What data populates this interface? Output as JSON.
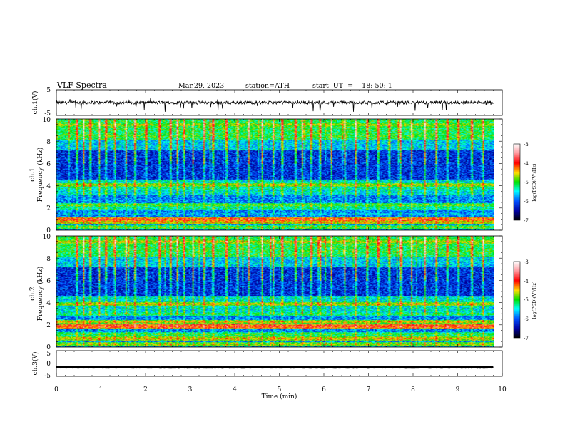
{
  "header": {
    "title": "VLF  Spectra",
    "date": "Mar.29, 2023",
    "station": "station=ATH",
    "start_ut": "start  UT  =    18: 50: 1"
  },
  "chart_data": [
    {
      "type": "line",
      "name": "ch1-waveform",
      "ylabel": "ch.1(V)",
      "ylim": [
        -5,
        5
      ],
      "yticks": [
        "5",
        "-5"
      ],
      "xlim": [
        0,
        9.8
      ],
      "baseline": 0,
      "noise_amplitude": 1.2,
      "spike_amplitude": 2.2
    },
    {
      "type": "heatmap",
      "name": "ch1-spectrogram",
      "ylabel_channel": "ch.1",
      "ylabel": "Frequency  (kHz)",
      "ylim": [
        0,
        10
      ],
      "yticks": [
        "0",
        "2",
        "4",
        "6",
        "8",
        "10"
      ],
      "xlim": [
        0,
        9.8
      ],
      "colorbar": {
        "label": "log(PSD)(V²/Hz)",
        "range": [
          -7,
          -3
        ],
        "ticks": [
          "-3",
          "-4",
          "-5",
          "-6",
          "-7"
        ]
      },
      "sferic_times_min": [
        0.45,
        0.6,
        0.75,
        0.95,
        1.1,
        1.3,
        1.55,
        1.75,
        2.0,
        2.3,
        2.55,
        2.7,
        2.85,
        3.05,
        3.3,
        3.5,
        3.8,
        4.05,
        4.3,
        4.6,
        4.85,
        5.05,
        5.35,
        5.5,
        5.7,
        5.9,
        6.15,
        6.45,
        6.7,
        6.95,
        7.2,
        7.45,
        7.7,
        7.95,
        8.25,
        8.5,
        8.75,
        9.0,
        9.3,
        9.55
      ],
      "bands_khz": [
        {
          "freq": 0.3,
          "level": -4.8
        },
        {
          "freq": 0.7,
          "level": -4.5
        },
        {
          "freq": 1.0,
          "level": -4.0
        },
        {
          "freq": 1.5,
          "level": -5.6
        },
        {
          "freq": 2.0,
          "level": -5.2
        },
        {
          "freq": 2.3,
          "level": -4.8
        },
        {
          "freq": 2.9,
          "level": -6.0
        },
        {
          "freq": 3.8,
          "level": -5.2
        },
        {
          "freq": 4.1,
          "level": -4.6
        },
        {
          "freq": 5.2,
          "level": -6.3
        },
        {
          "freq": 6.8,
          "level": -6.2
        },
        {
          "freq": 8.5,
          "level": -4.9
        },
        {
          "freq": 9.5,
          "level": -4.6
        }
      ]
    },
    {
      "type": "heatmap",
      "name": "ch2-spectrogram",
      "ylabel_channel": "ch.2",
      "ylabel": "Frequency  (kHz)",
      "ylim": [
        0,
        10
      ],
      "yticks": [
        "0",
        "2",
        "4",
        "6",
        "8",
        "10"
      ],
      "xlim": [
        0,
        9.8
      ],
      "colorbar": {
        "label": "log(PSD)(V²/Hz)",
        "range": [
          -7,
          -3
        ],
        "ticks": [
          "-3",
          "-4",
          "-5",
          "-6",
          "-7"
        ]
      },
      "sferic_times_min": [
        0.45,
        0.6,
        0.75,
        0.95,
        1.1,
        1.3,
        1.55,
        1.75,
        2.0,
        2.3,
        2.55,
        2.7,
        2.85,
        3.05,
        3.3,
        3.5,
        3.8,
        4.05,
        4.3,
        4.6,
        4.85,
        5.05,
        5.35,
        5.5,
        5.7,
        5.9,
        6.15,
        6.45,
        6.7,
        6.95,
        7.2,
        7.45,
        7.7,
        7.95,
        8.25,
        8.5,
        8.75,
        9.0,
        9.3,
        9.55
      ],
      "bands_khz": [
        {
          "freq": 0.3,
          "level": -4.6
        },
        {
          "freq": 0.8,
          "level": -4.4
        },
        {
          "freq": 1.2,
          "level": -4.9
        },
        {
          "freq": 1.9,
          "level": -3.9
        },
        {
          "freq": 2.3,
          "level": -4.5
        },
        {
          "freq": 3.0,
          "level": -5.0
        },
        {
          "freq": 3.9,
          "level": -4.5
        },
        {
          "freq": 5.3,
          "level": -6.2
        },
        {
          "freq": 6.7,
          "level": -6.1
        },
        {
          "freq": 8.6,
          "level": -4.9
        },
        {
          "freq": 9.5,
          "level": -4.5
        }
      ]
    },
    {
      "type": "line",
      "name": "ch3-waveform",
      "ylabel": "ch.3(V)",
      "ylim": [
        -5,
        5
      ],
      "yticks": [
        "5",
        "0",
        "-5"
      ],
      "xlim": [
        0,
        9.8
      ],
      "baseline": -1.5,
      "noise_amplitude": 0.15
    }
  ],
  "x_axis": {
    "label": "Time  (min)",
    "ticks": [
      "0",
      "1",
      "2",
      "3",
      "4",
      "5",
      "6",
      "7",
      "8",
      "9",
      "10"
    ],
    "range": [
      0,
      10
    ]
  }
}
